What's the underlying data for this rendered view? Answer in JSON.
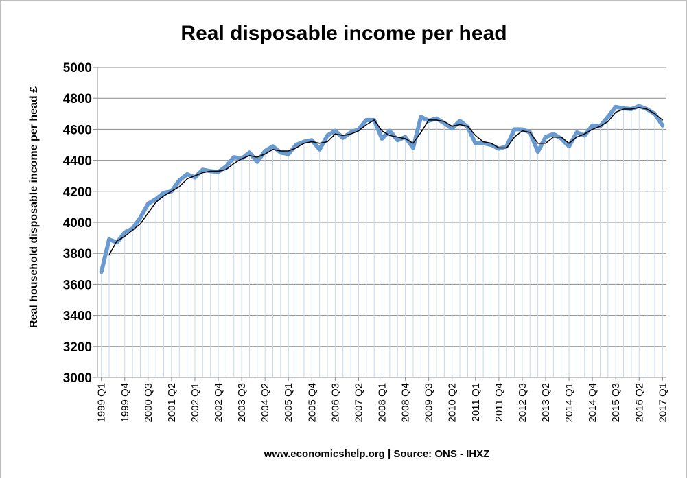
{
  "chart_data": {
    "type": "line",
    "title": "Real disposable income per head",
    "xlabel": "",
    "ylabel": "Real household disposable income per head £",
    "ylim": [
      3000,
      5000
    ],
    "y_ticks": [
      "3000",
      "3200",
      "3400",
      "3600",
      "3800",
      "4000",
      "4200",
      "4400",
      "4600",
      "4800",
      "5000"
    ],
    "grid": "horizontal",
    "legend": "none",
    "source_note": "www.economicshelp.org | Source: ONS - IHXZ",
    "x_tick_labels": [
      "1999 Q1",
      "1999 Q4",
      "2000 Q3",
      "2001 Q2",
      "2002 Q1",
      "2002 Q4",
      "2003 Q3",
      "2004 Q2",
      "2005 Q1",
      "2005 Q4",
      "2006 Q3",
      "2007 Q2",
      "2008 Q1",
      "2008 Q4",
      "2009 Q3",
      "2010 Q2",
      "2011 Q1",
      "2011 Q4",
      "2012 Q3",
      "2013 Q2",
      "2014 Q1",
      "2014 Q4",
      "2015 Q3",
      "2016 Q2",
      "2017 Q1"
    ],
    "x": [
      "1999 Q1",
      "1999 Q2",
      "1999 Q3",
      "1999 Q4",
      "2000 Q1",
      "2000 Q2",
      "2000 Q3",
      "2000 Q4",
      "2001 Q1",
      "2001 Q2",
      "2001 Q3",
      "2001 Q4",
      "2002 Q1",
      "2002 Q2",
      "2002 Q3",
      "2002 Q4",
      "2003 Q1",
      "2003 Q2",
      "2003 Q3",
      "2003 Q4",
      "2004 Q1",
      "2004 Q2",
      "2004 Q3",
      "2004 Q4",
      "2005 Q1",
      "2005 Q2",
      "2005 Q3",
      "2005 Q4",
      "2006 Q1",
      "2006 Q2",
      "2006 Q3",
      "2006 Q4",
      "2007 Q1",
      "2007 Q2",
      "2007 Q3",
      "2007 Q4",
      "2008 Q1",
      "2008 Q2",
      "2008 Q3",
      "2008 Q4",
      "2009 Q1",
      "2009 Q2",
      "2009 Q3",
      "2009 Q4",
      "2010 Q1",
      "2010 Q2",
      "2010 Q3",
      "2010 Q4",
      "2011 Q1",
      "2011 Q2",
      "2011 Q3",
      "2011 Q4",
      "2012 Q1",
      "2012 Q2",
      "2012 Q3",
      "2012 Q4",
      "2013 Q1",
      "2013 Q2",
      "2013 Q3",
      "2013 Q4",
      "2014 Q1",
      "2014 Q2",
      "2014 Q3",
      "2014 Q4",
      "2015 Q1",
      "2015 Q2",
      "2015 Q3",
      "2015 Q4",
      "2016 Q1",
      "2016 Q2",
      "2016 Q3",
      "2016 Q4",
      "2017 Q1"
    ],
    "series": [
      {
        "style": "thick-blue",
        "color": "#6a9bd0",
        "values": [
          3680,
          3890,
          3870,
          3935,
          3960,
          4030,
          4120,
          4150,
          4190,
          4200,
          4270,
          4310,
          4290,
          4340,
          4330,
          4325,
          4360,
          4420,
          4410,
          4450,
          4390,
          4460,
          4490,
          4450,
          4440,
          4500,
          4520,
          4530,
          4470,
          4560,
          4590,
          4545,
          4580,
          4600,
          4660,
          4660,
          4540,
          4590,
          4530,
          4550,
          4480,
          4680,
          4655,
          4670,
          4640,
          4605,
          4655,
          4615,
          4510,
          4510,
          4500,
          4475,
          4490,
          4600,
          4600,
          4580,
          4455,
          4550,
          4570,
          4540,
          4490,
          4580,
          4560,
          4625,
          4620,
          4680,
          4745,
          4735,
          4730,
          4750,
          4730,
          4700,
          4625
        ]
      },
      {
        "style": "thin-black",
        "color": "#000000",
        "values": [
          null,
          3790,
          3880,
          3910,
          3950,
          3990,
          4060,
          4130,
          4170,
          4200,
          4230,
          4280,
          4300,
          4320,
          4330,
          4330,
          4340,
          4380,
          4410,
          4430,
          4420,
          4440,
          4470,
          4460,
          4460,
          4480,
          4510,
          4520,
          4510,
          4520,
          4570,
          4560,
          4570,
          4590,
          4630,
          4660,
          4590,
          4560,
          4550,
          4540,
          4510,
          4580,
          4660,
          4660,
          4650,
          4620,
          4630,
          4620,
          4560,
          4520,
          4510,
          4480,
          4480,
          4550,
          4590,
          4580,
          4510,
          4510,
          4550,
          4550,
          4510,
          4550,
          4570,
          4600,
          4620,
          4650,
          4710,
          4730,
          4730,
          4740,
          4730,
          4700,
          4660
        ]
      }
    ]
  }
}
